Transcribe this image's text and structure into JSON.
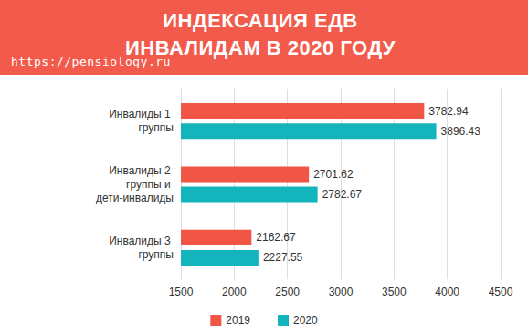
{
  "chart_data": {
    "type": "bar",
    "title": "ИНДЕКСАЦИЯ ЕДВ ИНВАЛИДАМ В 2020 ГОДУ",
    "subtitle": "https://pensiology.ru",
    "orientation": "horizontal",
    "categories": [
      "Инвалиды 1 группы",
      "Инвалиды 2 группы и дети-инвалиды",
      "Инвалиды 3 группы"
    ],
    "series": [
      {
        "name": "2019",
        "color": "#f05545",
        "values": [
          3782.94,
          2701.62,
          2162.67
        ]
      },
      {
        "name": "2020",
        "color": "#14b4bd",
        "values": [
          3896.43,
          2782.67,
          2227.55
        ]
      }
    ],
    "xlim": [
      1500,
      4500
    ],
    "xticks": [
      1500,
      2000,
      2500,
      3000,
      3500,
      4000,
      4500
    ],
    "grid": true,
    "data_labels": true,
    "legend": "bottom"
  }
}
